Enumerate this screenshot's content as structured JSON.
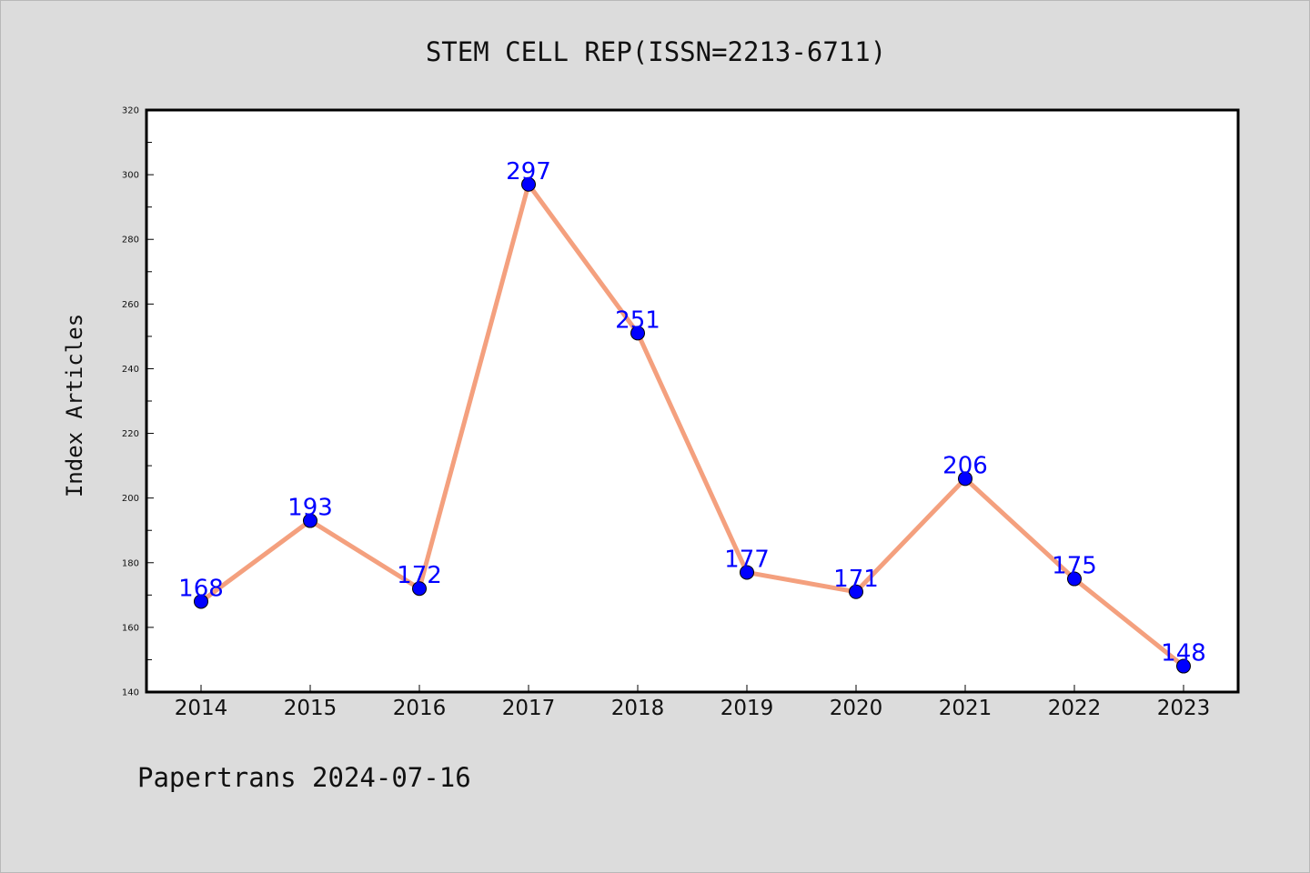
{
  "chart_data": {
    "type": "line",
    "title": "STEM CELL REP(ISSN=2213-6711)",
    "xlabel": "",
    "ylabel": "Index Articles",
    "categories": [
      "2014",
      "2015",
      "2016",
      "2017",
      "2018",
      "2019",
      "2020",
      "2021",
      "2022",
      "2023"
    ],
    "series": [
      {
        "values": [
          168,
          193,
          172,
          297,
          251,
          177,
          171,
          206,
          175,
          148
        ]
      }
    ],
    "ylim": [
      140,
      320
    ],
    "yticks": [
      140,
      160,
      180,
      200,
      220,
      240,
      260,
      280,
      300,
      320
    ],
    "grid": false,
    "data_labels": true,
    "colors": {
      "line": "#f4a07e",
      "marker": "#0000ff",
      "label": "#0000ff",
      "plot_background": "#ffffff",
      "page_background": "#dcdcdc"
    }
  },
  "footer": {
    "text": "Papertrans 2024-07-16"
  }
}
